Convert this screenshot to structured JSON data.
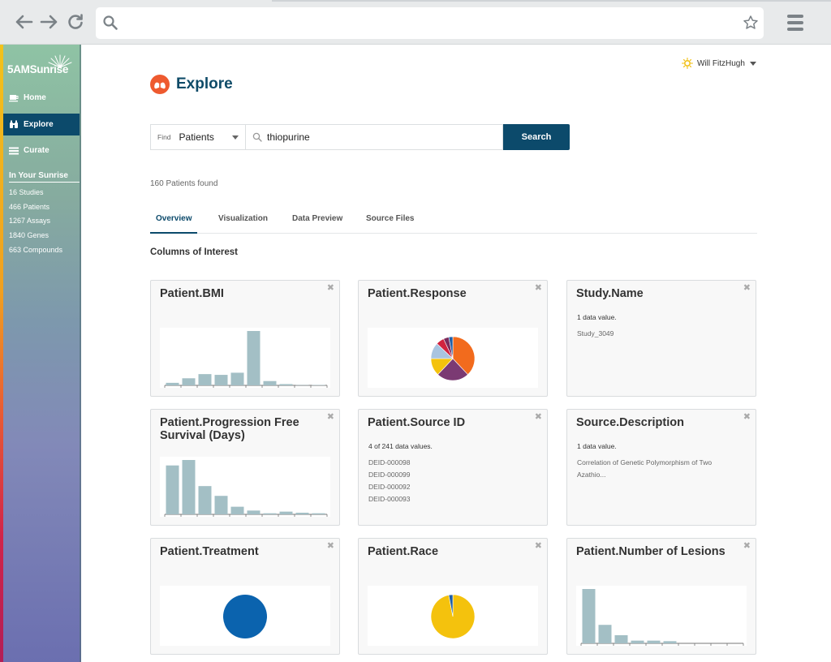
{
  "browser": {
    "icons": [
      "back-arrow-icon",
      "forward-arrow-icon",
      "reload-icon",
      "search-icon",
      "star-icon",
      "menu-icon"
    ]
  },
  "sidebar": {
    "logo": "5AMSunrise",
    "nav": [
      {
        "label": "Home",
        "icon": "home-icon"
      },
      {
        "label": "Explore",
        "icon": "binoculars-icon"
      },
      {
        "label": "Curate",
        "icon": "list-icon"
      }
    ],
    "heading": "In Your Sunrise",
    "stats": [
      "16 Studies",
      "466 Patients",
      "1267 Assays",
      "1840 Genes",
      "663 Compounds"
    ]
  },
  "header": {
    "user_name": "Will FitzHugh",
    "page_title": "Explore"
  },
  "search": {
    "find_label": "Find",
    "entity": "Patients",
    "query": "thiopurine",
    "button": "Search"
  },
  "results": {
    "count_text": "160 Patients found"
  },
  "tabs": [
    "Overview",
    "Visualization",
    "Data Preview",
    "Source Files"
  ],
  "section_title": "Columns of Interest",
  "colors": {
    "bar": "#a3bfc5",
    "primary": "#0c4a6b",
    "pie": [
      "#f26b1d",
      "#7b3a73",
      "#f4c20d",
      "#a9c4e0",
      "#d1233f",
      "#7a2a5c",
      "#1f5fa8"
    ]
  },
  "cards": [
    {
      "title": "Patient.BMI"
    },
    {
      "title": "Patient.Response"
    },
    {
      "title": "Study.Name",
      "note": "1 data value.",
      "values": [
        "Study_3049"
      ]
    },
    {
      "title": "Patient.Progression Free Survival (Days)"
    },
    {
      "title": "Patient.Source ID",
      "note": "4 of 241 data values.",
      "values": [
        "DEID-000098",
        "DEID-000099",
        "DEID-000092",
        "DEID-000093"
      ]
    },
    {
      "title": "Source.Description",
      "note": "1 data value.",
      "values": [
        "Correlation of Genetic Polymorphism of Two Azathio..."
      ]
    },
    {
      "title": "Patient.Treatment"
    },
    {
      "title": "Patient.Race"
    },
    {
      "title": "Patient.Number of Lesions"
    }
  ],
  "chart_data": [
    {
      "type": "bar",
      "title": "Patient.BMI",
      "values": [
        2,
        5.6,
        8.9,
        8.3,
        10,
        43,
        3.4,
        1,
        0.2,
        0.3
      ]
    },
    {
      "type": "pie",
      "title": "Patient.Response",
      "values": [
        38,
        24,
        13,
        12,
        6,
        4,
        3
      ]
    },
    {
      "type": "bar",
      "title": "Patient.Progression Free Survival (Days)",
      "values": [
        9,
        10,
        5.2,
        3.4,
        1.4,
        0.7,
        0.2,
        0.5,
        0.3,
        0.2
      ]
    },
    {
      "type": "pie",
      "title": "Patient.Treatment",
      "values": [
        100
      ]
    },
    {
      "type": "pie",
      "title": "Patient.Race",
      "values": [
        97,
        3
      ]
    },
    {
      "type": "bar",
      "title": "Patient.Number of Lesions",
      "values": [
        10,
        3.4,
        1.5,
        0.5,
        0.5,
        0.4,
        0,
        0,
        0,
        0
      ]
    }
  ]
}
